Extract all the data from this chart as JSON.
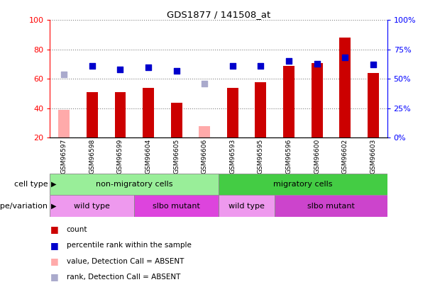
{
  "title": "GDS1877 / 141508_at",
  "samples": [
    "GSM96597",
    "GSM96598",
    "GSM96599",
    "GSM96604",
    "GSM96605",
    "GSM96606",
    "GSM96593",
    "GSM96595",
    "GSM96596",
    "GSM96600",
    "GSM96602",
    "GSM96603"
  ],
  "count_values": [
    null,
    51,
    51,
    54,
    44,
    null,
    54,
    58,
    69,
    71,
    88,
    64
  ],
  "count_absent": [
    39,
    null,
    null,
    null,
    null,
    28,
    null,
    null,
    null,
    null,
    null,
    null
  ],
  "percentile_values": [
    null,
    61,
    58,
    60,
    57,
    null,
    61,
    61,
    65,
    63,
    68,
    62
  ],
  "percentile_absent": [
    54,
    null,
    null,
    null,
    null,
    46,
    null,
    null,
    null,
    null,
    null,
    null
  ],
  "ylim_left": [
    20,
    100
  ],
  "left_ticks": [
    20,
    40,
    60,
    80,
    100
  ],
  "right_tick_labels": [
    "0%",
    "25%",
    "50%",
    "75%",
    "100%"
  ],
  "right_tick_vals": [
    0,
    25,
    50,
    75,
    100
  ],
  "bar_color": "#cc0000",
  "absent_bar_color": "#ffaaaa",
  "dot_color": "#0000cc",
  "absent_dot_color": "#aaaacc",
  "cell_type_groups": [
    {
      "label": "non-migratory cells",
      "start": 0,
      "end": 6,
      "color": "#99ee99"
    },
    {
      "label": "migratory cells",
      "start": 6,
      "end": 12,
      "color": "#44cc44"
    }
  ],
  "genotype_groups": [
    {
      "label": "wild type",
      "start": 0,
      "end": 3,
      "color": "#ee99ee"
    },
    {
      "label": "slbo mutant",
      "start": 3,
      "end": 6,
      "color": "#dd44dd"
    },
    {
      "label": "wild type",
      "start": 6,
      "end": 8,
      "color": "#ee99ee"
    },
    {
      "label": "slbo mutant",
      "start": 8,
      "end": 12,
      "color": "#cc44cc"
    }
  ],
  "legend_items": [
    {
      "label": "count",
      "color": "#cc0000"
    },
    {
      "label": "percentile rank within the sample",
      "color": "#0000cc"
    },
    {
      "label": "value, Detection Call = ABSENT",
      "color": "#ffaaaa"
    },
    {
      "label": "rank, Detection Call = ABSENT",
      "color": "#aaaacc"
    }
  ]
}
